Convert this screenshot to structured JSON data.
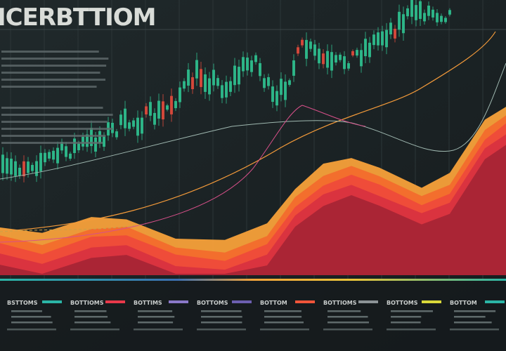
{
  "header": {
    "title": "ICERBTTIOM"
  },
  "legend": [
    {
      "label": "BSTTOMS",
      "color": "#2bb5a6"
    },
    {
      "label": "BOTTIOMS",
      "color": "#e8394a"
    },
    {
      "label": "BOTTIMS",
      "color": "#8a78c8"
    },
    {
      "label": "BOTTOMS",
      "color": "#6c5fb0"
    },
    {
      "label": "BOTTOM",
      "color": "#f0553a"
    },
    {
      "label": "BOTTIOMS",
      "color": "#8c9396"
    },
    {
      "label": "BOTTOMS",
      "color": "#d9d83a"
    },
    {
      "label": "BOTTOM",
      "color": "#2bb5a6"
    }
  ]
}
